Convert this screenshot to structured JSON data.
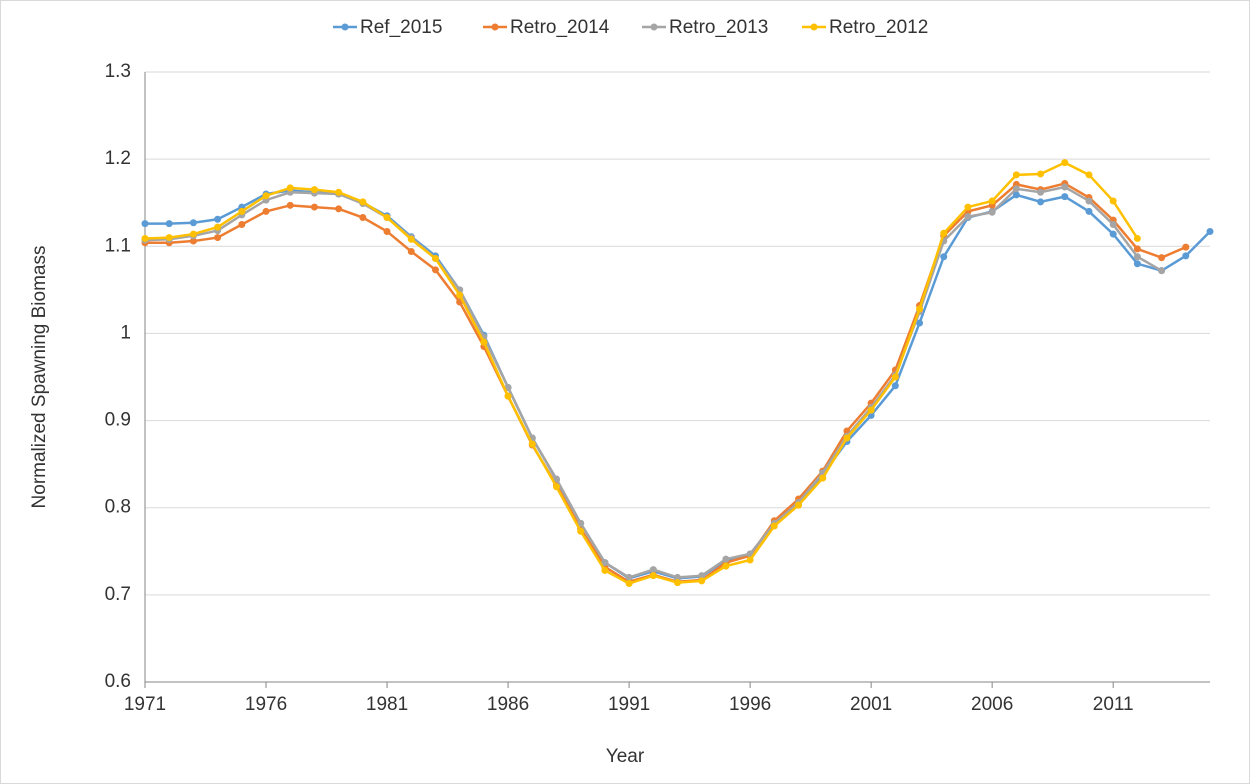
{
  "chart_data": {
    "type": "line",
    "x_label": "Year",
    "y_label": "Normalized Spawning Biomass",
    "x": [
      1971,
      1972,
      1973,
      1974,
      1975,
      1976,
      1977,
      1978,
      1979,
      1980,
      1981,
      1982,
      1983,
      1984,
      1985,
      1986,
      1987,
      1988,
      1989,
      1990,
      1991,
      1992,
      1993,
      1994,
      1995,
      1996,
      1997,
      1998,
      1999,
      2000,
      2001,
      2002,
      2003,
      2004,
      2005,
      2006,
      2007,
      2008,
      2009,
      2010,
      2011,
      2012,
      2013,
      2014,
      2015
    ],
    "series": [
      {
        "name": "Ref_2015",
        "color": "#5b9bd5",
        "values": [
          1.126,
          1.126,
          1.127,
          1.131,
          1.145,
          1.16,
          1.164,
          1.162,
          1.16,
          1.15,
          1.135,
          1.111,
          1.089,
          1.05,
          0.998,
          0.938,
          0.88,
          0.832,
          0.782,
          0.737,
          0.719,
          0.727,
          0.719,
          0.721,
          0.74,
          0.746,
          0.783,
          0.806,
          0.838,
          0.876,
          0.906,
          0.94,
          1.012,
          1.088,
          1.133,
          1.14,
          1.159,
          1.151,
          1.157,
          1.14,
          1.114,
          1.08,
          1.072,
          1.089,
          1.117
        ]
      },
      {
        "name": "Retro_2014",
        "color": "#ed7d31",
        "values": [
          1.104,
          1.104,
          1.106,
          1.11,
          1.125,
          1.14,
          1.147,
          1.145,
          1.143,
          1.133,
          1.117,
          1.094,
          1.073,
          1.036,
          0.985,
          0.928,
          0.872,
          0.826,
          0.776,
          0.732,
          0.715,
          0.723,
          0.715,
          0.717,
          0.737,
          0.745,
          0.785,
          0.81,
          0.842,
          0.888,
          0.92,
          0.958,
          1.032,
          1.112,
          1.14,
          1.147,
          1.171,
          1.165,
          1.172,
          1.156,
          1.13,
          1.097,
          1.087,
          1.099,
          null
        ]
      },
      {
        "name": "Retro_2013",
        "color": "#a5a5a5",
        "values": [
          1.107,
          1.108,
          1.112,
          1.118,
          1.136,
          1.153,
          1.162,
          1.161,
          1.16,
          1.149,
          1.133,
          1.11,
          1.086,
          1.05,
          0.996,
          0.938,
          0.88,
          0.833,
          0.782,
          0.737,
          0.72,
          0.729,
          0.72,
          0.722,
          0.741,
          0.747,
          0.782,
          0.806,
          0.84,
          0.882,
          0.915,
          0.952,
          1.025,
          1.106,
          1.134,
          1.139,
          1.166,
          1.162,
          1.168,
          1.152,
          1.125,
          1.088,
          1.072,
          null,
          null
        ]
      },
      {
        "name": "Retro_2012",
        "color": "#ffc000",
        "values": [
          1.109,
          1.11,
          1.114,
          1.122,
          1.14,
          1.158,
          1.167,
          1.165,
          1.162,
          1.151,
          1.133,
          1.108,
          1.086,
          1.044,
          0.99,
          0.928,
          0.873,
          0.824,
          0.773,
          0.728,
          0.713,
          0.722,
          0.714,
          0.716,
          0.733,
          0.74,
          0.779,
          0.803,
          0.834,
          0.88,
          0.912,
          0.95,
          1.028,
          1.115,
          1.145,
          1.152,
          1.182,
          1.183,
          1.196,
          1.182,
          1.152,
          1.109,
          null,
          null,
          null
        ]
      }
    ],
    "xlim": [
      1971,
      2015
    ],
    "xticks": [
      1971,
      1976,
      1981,
      1986,
      1991,
      1996,
      2001,
      2006,
      2011
    ],
    "ylim": [
      0.6,
      1.3
    ],
    "yticks": [
      0.6,
      0.7,
      0.8,
      0.9,
      1,
      1.1,
      1.2,
      1.3
    ],
    "grid": true,
    "legend": "top"
  }
}
